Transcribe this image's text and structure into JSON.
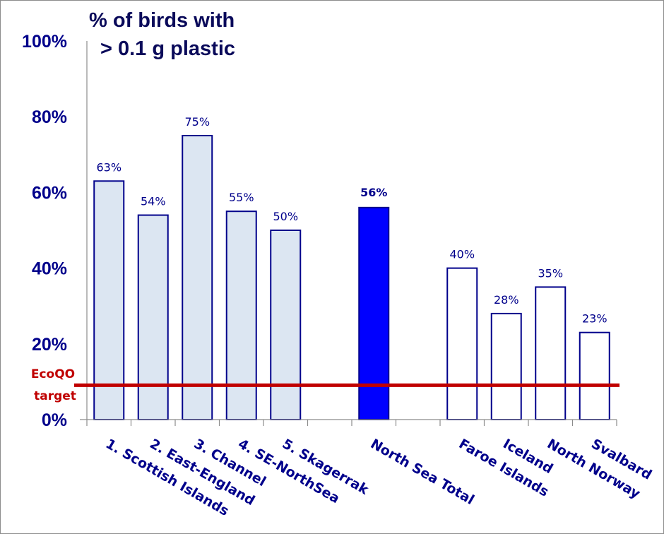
{
  "chart_data": {
    "type": "bar",
    "title_lines": [
      "% of birds with",
      "> 0.1 g plastic"
    ],
    "xlabel": "",
    "ylabel": "",
    "ylim": [
      0,
      100
    ],
    "yticks": [
      "0%",
      "20%",
      "40%",
      "60%",
      "80%",
      "100%"
    ],
    "ytick_values": [
      0,
      20,
      40,
      60,
      80,
      100
    ],
    "grid": false,
    "categories": [
      "1. Scottish Islands",
      "2. East-England",
      "3. Channel",
      "4. SE-NorthSea",
      "5. Skagerrak",
      "North Sea Total",
      "Faroe Islands",
      "Iceland",
      "North Norway",
      "Svalbard"
    ],
    "values": [
      63,
      54,
      75,
      55,
      50,
      56,
      40,
      28,
      35,
      23
    ],
    "data_labels": [
      "63%",
      "54%",
      "75%",
      "55%",
      "50%",
      "56%",
      "40%",
      "28%",
      "35%",
      "23%"
    ],
    "groups": [
      "region",
      "region",
      "region",
      "region",
      "region",
      "total",
      "other",
      "other",
      "other",
      "other"
    ],
    "group_colors": {
      "region": "#dce6f2",
      "total": "#0000ff",
      "other": "#ffffff"
    },
    "bar_outline_color": "#00008b",
    "reference_line": {
      "value": 10,
      "label_lines": [
        "EcoQO",
        "target"
      ],
      "color": "#c00000"
    }
  }
}
